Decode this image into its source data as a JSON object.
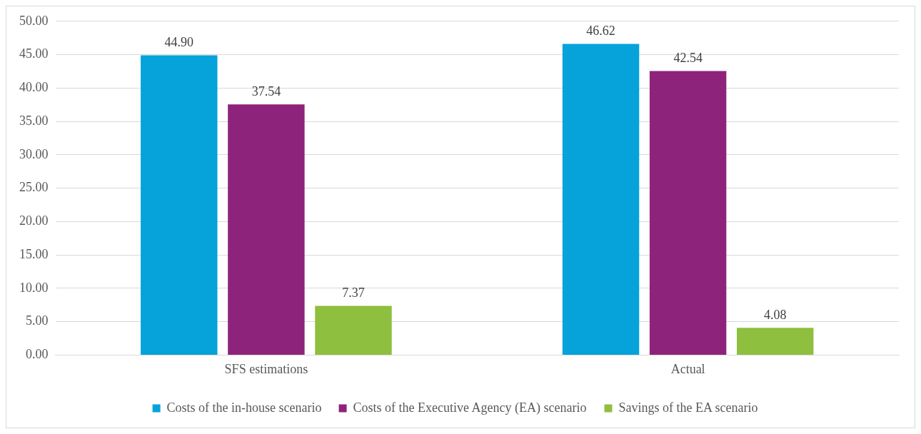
{
  "chart_data": {
    "type": "bar",
    "categories": [
      "SFS estimations",
      "Actual"
    ],
    "series": [
      {
        "name": "Costs of the in-house scenario",
        "color": "#05a3da",
        "values": [
          44.9,
          46.62
        ],
        "value_labels": [
          "44.90",
          "46.62"
        ]
      },
      {
        "name": "Costs of the Executive Agency (EA) scenario",
        "color": "#8e237c",
        "values": [
          37.54,
          42.54
        ],
        "value_labels": [
          "37.54",
          "42.54"
        ]
      },
      {
        "name": "Savings of the EA scenario",
        "color": "#8fbf3e",
        "values": [
          7.37,
          4.08
        ],
        "value_labels": [
          "7.37",
          "4.08"
        ]
      }
    ],
    "ylim": [
      0,
      50
    ],
    "yticks": [
      {
        "value": 0,
        "label": "0.00"
      },
      {
        "value": 5,
        "label": "5.00"
      },
      {
        "value": 10,
        "label": "10.00"
      },
      {
        "value": 15,
        "label": "15.00"
      },
      {
        "value": 20,
        "label": "20.00"
      },
      {
        "value": 25,
        "label": "25.00"
      },
      {
        "value": 30,
        "label": "30.00"
      },
      {
        "value": 35,
        "label": "35.00"
      },
      {
        "value": 40,
        "label": "40.00"
      },
      {
        "value": 45,
        "label": "45.00"
      },
      {
        "value": 50,
        "label": "50.00"
      }
    ],
    "grid": "y",
    "legend": "bottom"
  }
}
